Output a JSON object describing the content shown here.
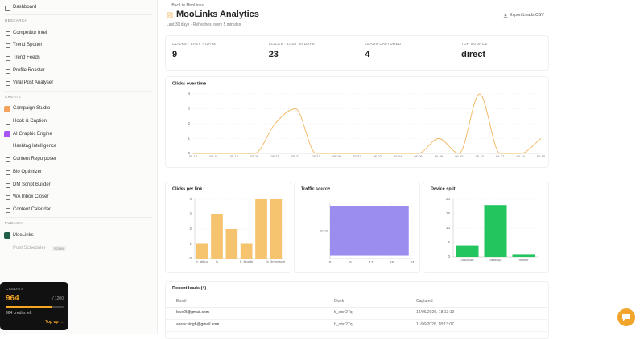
{
  "sidebar": {
    "top": "Dashboard",
    "sections": [
      {
        "title": "RESEARCH",
        "items": [
          {
            "label": "Competitor Intel"
          },
          {
            "label": "Trend Spotter"
          },
          {
            "label": "Trend Feeds"
          },
          {
            "label": "Profile Roaster"
          },
          {
            "label": "Viral Post Analyser"
          }
        ]
      },
      {
        "title": "CREATE",
        "items": [
          {
            "label": "Campaign Studio",
            "icon_color": "#f5a35c"
          },
          {
            "label": "Hook & Caption"
          },
          {
            "label": "AI Graphic Engine",
            "icon_color": "#a855f7"
          },
          {
            "label": "Hashtag Intelligence"
          },
          {
            "label": "Content Repurposer"
          },
          {
            "label": "Bio Optimizer"
          },
          {
            "label": "DM Script Builder"
          },
          {
            "label": "WA Inbox Closer"
          },
          {
            "label": "Content Calendar"
          }
        ]
      },
      {
        "title": "PUBLISH",
        "items": [
          {
            "label": "MooLinks",
            "icon_color": "#1f5f4a"
          },
          {
            "label": "Post Scheduler",
            "badge": "SOON"
          }
        ]
      }
    ]
  },
  "credits": {
    "title": "CREDITS",
    "balance": 964,
    "total": {
      "value": 1200,
      "label": "/ 1200"
    },
    "left_label": "964 credits left",
    "action": "Top up →"
  },
  "header": {
    "back": "← Back to MooLinks",
    "title": "MooLinks Analytics",
    "subtitle": "Last 30 days · Refreshes every 5 minutes",
    "export": "Export Leads CSV"
  },
  "stats": [
    {
      "label": "CLICKS · LAST 7 DAYS",
      "value": 9
    },
    {
      "label": "CLICKS · LAST 30 DAYS",
      "value": 23
    },
    {
      "label": "LEADS CAPTURED",
      "value": 4
    },
    {
      "label": "TOP SOURCE",
      "value": "direct"
    }
  ],
  "chart_data": [
    {
      "type": "line",
      "title": "Clicks over time",
      "color": "#f2b55e",
      "categories": [
        "05-17",
        "05-18",
        "05-19",
        "05-20",
        "05-21",
        "05-23",
        "05-27",
        "05-29",
        "05-31",
        "06-02",
        "06-04",
        "06-06",
        "06-08",
        "06-15",
        "06-16",
        "06-17",
        "06-18",
        "06-19"
      ],
      "values": [
        0,
        0,
        0,
        0,
        2,
        3,
        0,
        0,
        0,
        0,
        0,
        0,
        1,
        0,
        4,
        0,
        0,
        1
      ],
      "ylim": [
        0,
        4
      ],
      "yticks": [
        0,
        1,
        2,
        3,
        4
      ],
      "grid": true
    },
    {
      "type": "bar",
      "title": "Clicks per link",
      "color": "#f6c46f",
      "categories": [
        "b_gtjhuo",
        "h",
        null,
        "b_jknpdk",
        null,
        "b_3rOchsvm"
      ],
      "values": [
        1,
        3,
        2,
        1,
        4,
        4
      ],
      "ylim": [
        0,
        4
      ],
      "yticks": [
        0,
        1,
        2,
        3,
        4
      ],
      "grid": true
    },
    {
      "type": "barh",
      "title": "Traffic source",
      "color": "#9b8cf0",
      "categories": [
        "direct"
      ],
      "values": [
        23
      ],
      "xlim": [
        0,
        24
      ],
      "xticks": [
        0,
        6,
        12,
        18,
        24
      ],
      "grid": true
    },
    {
      "type": "bar",
      "title": "Device split",
      "color": "#22c55e",
      "categories": [
        "unknown",
        "desktop",
        "mobile"
      ],
      "values": [
        4,
        18,
        1
      ],
      "ylim": [
        0,
        20
      ],
      "yticks": [
        0,
        5,
        10,
        15,
        20
      ],
      "grid": true
    }
  ],
  "leads": {
    "title": "Recent leads (4)",
    "columns": [
      "Email",
      "Block",
      "Captured"
    ],
    "rows": [
      [
        "love2l@gmail.com",
        "b_obrf27q",
        "14/06/2026, 18:13:19"
      ],
      [
        "aarav.singh@gmail.com",
        "b_obrf27q",
        "11/06/2026, 18:13:07"
      ]
    ]
  }
}
